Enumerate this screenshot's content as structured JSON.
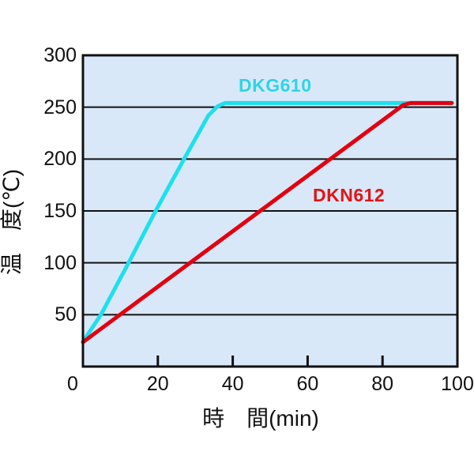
{
  "chart_data": {
    "type": "line",
    "title": "",
    "xlabel": "時　間(min)",
    "ylabel": "温　度(℃)",
    "xlim": [
      0,
      100
    ],
    "ylim": [
      0,
      300
    ],
    "x_ticks": [
      0,
      20,
      40,
      60,
      80,
      100
    ],
    "y_ticks": [
      0,
      50,
      100,
      150,
      200,
      250,
      300
    ],
    "grid": "horizontal-only",
    "legend_position": "inline-labels",
    "plot_background": "#d9e8f9",
    "grid_color": "#111111",
    "axis_color": "#111111",
    "series": [
      {
        "name": "DKG610",
        "color": "#1fdfee",
        "label_color": "#2ed4e6",
        "points": [
          [
            0,
            24
          ],
          [
            4.8,
            50
          ],
          [
            12.2,
            100
          ],
          [
            19.4,
            150
          ],
          [
            27,
            200
          ],
          [
            33.5,
            242
          ],
          [
            36,
            251
          ],
          [
            38,
            254
          ],
          [
            98.5,
            254
          ]
        ]
      },
      {
        "name": "DKN612",
        "color": "#e3000f",
        "label_color": "#e31414",
        "points": [
          [
            0,
            23.5
          ],
          [
            85.5,
            252
          ],
          [
            87.5,
            254
          ],
          [
            98.5,
            254
          ]
        ]
      }
    ]
  }
}
